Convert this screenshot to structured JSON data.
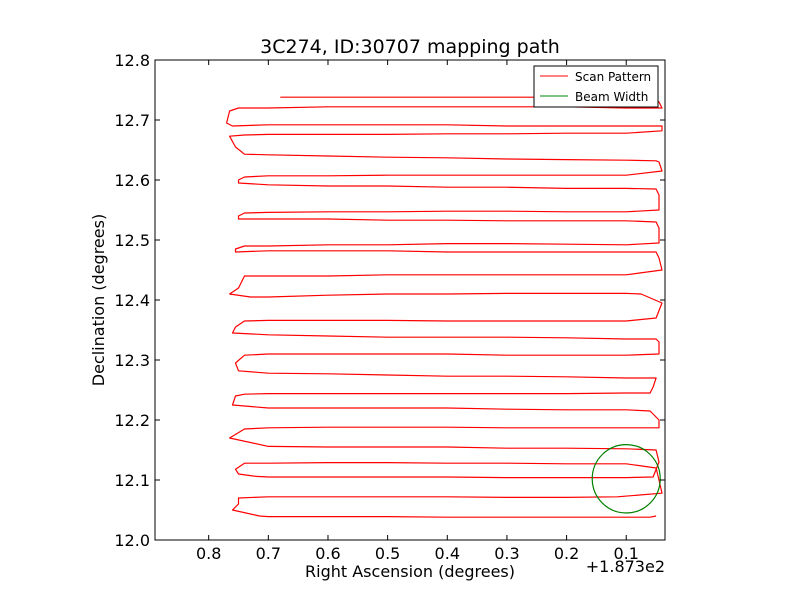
{
  "chart_data": {
    "type": "line",
    "title": "3C274, ID:30707 mapping path",
    "xlabel": "Right Ascension (degrees)",
    "ylabel": "Declination (degrees)",
    "x_offset_label": "+1.873e2",
    "xlim": [
      0.89,
      0.035
    ],
    "ylim": [
      12.0,
      12.8
    ],
    "x_ticks": [
      0.8,
      0.7,
      0.6,
      0.5,
      0.4,
      0.3,
      0.2,
      0.1
    ],
    "x_tick_labels": [
      "0.8",
      "0.7",
      "0.6",
      "0.5",
      "0.4",
      "0.3",
      "0.2",
      "0.1"
    ],
    "y_ticks": [
      12.0,
      12.1,
      12.2,
      12.3,
      12.4,
      12.5,
      12.6,
      12.7,
      12.8
    ],
    "y_tick_labels": [
      "12.0",
      "12.1",
      "12.2",
      "12.3",
      "12.4",
      "12.5",
      "12.6",
      "12.7",
      "12.8"
    ],
    "grid": false,
    "legend_position": "top-right",
    "series": [
      {
        "name": "Scan Pattern",
        "color": "#ff0000",
        "points": [
          [
            0.05,
            12.04
          ],
          [
            0.06,
            12.038
          ],
          [
            0.1,
            12.038
          ],
          [
            0.2,
            12.038
          ],
          [
            0.3,
            12.038
          ],
          [
            0.4,
            12.038
          ],
          [
            0.5,
            12.039
          ],
          [
            0.6,
            12.039
          ],
          [
            0.7,
            12.039
          ],
          [
            0.715,
            12.04
          ],
          [
            0.76,
            12.05
          ],
          [
            0.75,
            12.06
          ],
          [
            0.75,
            12.07
          ],
          [
            0.7,
            12.072
          ],
          [
            0.6,
            12.072
          ],
          [
            0.5,
            12.072
          ],
          [
            0.4,
            12.072
          ],
          [
            0.3,
            12.071
          ],
          [
            0.2,
            12.071
          ],
          [
            0.115,
            12.072
          ],
          [
            0.04,
            12.078
          ],
          [
            0.045,
            12.1
          ],
          [
            0.05,
            12.12
          ],
          [
            0.1,
            12.127
          ],
          [
            0.2,
            12.127
          ],
          [
            0.3,
            12.128
          ],
          [
            0.4,
            12.128
          ],
          [
            0.5,
            12.129
          ],
          [
            0.6,
            12.129
          ],
          [
            0.7,
            12.128
          ],
          [
            0.74,
            12.128
          ],
          [
            0.755,
            12.118
          ],
          [
            0.75,
            12.11
          ],
          [
            0.72,
            12.106
          ],
          [
            0.7,
            12.105
          ],
          [
            0.6,
            12.105
          ],
          [
            0.5,
            12.105
          ],
          [
            0.4,
            12.105
          ],
          [
            0.3,
            12.104
          ],
          [
            0.2,
            12.104
          ],
          [
            0.1,
            12.104
          ],
          [
            0.055,
            12.105
          ],
          [
            0.045,
            12.13
          ],
          [
            0.05,
            12.15
          ],
          [
            0.1,
            12.152
          ],
          [
            0.2,
            12.153
          ],
          [
            0.3,
            12.153
          ],
          [
            0.4,
            12.155
          ],
          [
            0.5,
            12.155
          ],
          [
            0.6,
            12.155
          ],
          [
            0.7,
            12.156
          ],
          [
            0.765,
            12.17
          ],
          [
            0.74,
            12.185
          ],
          [
            0.7,
            12.187
          ],
          [
            0.6,
            12.188
          ],
          [
            0.5,
            12.188
          ],
          [
            0.4,
            12.188
          ],
          [
            0.3,
            12.187
          ],
          [
            0.2,
            12.187
          ],
          [
            0.1,
            12.187
          ],
          [
            0.045,
            12.187
          ],
          [
            0.045,
            12.2
          ],
          [
            0.06,
            12.215
          ],
          [
            0.1,
            12.217
          ],
          [
            0.2,
            12.217
          ],
          [
            0.3,
            12.218
          ],
          [
            0.4,
            12.22
          ],
          [
            0.5,
            12.22
          ],
          [
            0.6,
            12.22
          ],
          [
            0.7,
            12.22
          ],
          [
            0.76,
            12.225
          ],
          [
            0.755,
            12.24
          ],
          [
            0.74,
            12.243
          ],
          [
            0.7,
            12.244
          ],
          [
            0.6,
            12.244
          ],
          [
            0.5,
            12.244
          ],
          [
            0.4,
            12.244
          ],
          [
            0.3,
            12.244
          ],
          [
            0.2,
            12.244
          ],
          [
            0.1,
            12.245
          ],
          [
            0.06,
            12.245
          ],
          [
            0.055,
            12.255
          ],
          [
            0.05,
            12.27
          ],
          [
            0.1,
            12.27
          ],
          [
            0.2,
            12.272
          ],
          [
            0.3,
            12.273
          ],
          [
            0.4,
            12.273
          ],
          [
            0.5,
            12.275
          ],
          [
            0.6,
            12.277
          ],
          [
            0.7,
            12.278
          ],
          [
            0.75,
            12.282
          ],
          [
            0.755,
            12.295
          ],
          [
            0.74,
            12.308
          ],
          [
            0.7,
            12.31
          ],
          [
            0.6,
            12.31
          ],
          [
            0.5,
            12.31
          ],
          [
            0.4,
            12.31
          ],
          [
            0.3,
            12.308
          ],
          [
            0.2,
            12.308
          ],
          [
            0.1,
            12.308
          ],
          [
            0.045,
            12.31
          ],
          [
            0.045,
            12.33
          ],
          [
            0.05,
            12.335
          ],
          [
            0.1,
            12.335
          ],
          [
            0.2,
            12.337
          ],
          [
            0.3,
            12.338
          ],
          [
            0.4,
            12.338
          ],
          [
            0.5,
            12.338
          ],
          [
            0.6,
            12.34
          ],
          [
            0.7,
            12.342
          ],
          [
            0.76,
            12.345
          ],
          [
            0.755,
            12.355
          ],
          [
            0.74,
            12.365
          ],
          [
            0.7,
            12.366
          ],
          [
            0.6,
            12.366
          ],
          [
            0.5,
            12.366
          ],
          [
            0.4,
            12.365
          ],
          [
            0.3,
            12.365
          ],
          [
            0.2,
            12.365
          ],
          [
            0.1,
            12.365
          ],
          [
            0.05,
            12.37
          ],
          [
            0.04,
            12.395
          ],
          [
            0.075,
            12.41
          ],
          [
            0.1,
            12.411
          ],
          [
            0.2,
            12.411
          ],
          [
            0.3,
            12.411
          ],
          [
            0.4,
            12.41
          ],
          [
            0.5,
            12.41
          ],
          [
            0.6,
            12.408
          ],
          [
            0.7,
            12.405
          ],
          [
            0.73,
            12.405
          ],
          [
            0.765,
            12.41
          ],
          [
            0.75,
            12.42
          ],
          [
            0.74,
            12.44
          ],
          [
            0.7,
            12.44
          ],
          [
            0.6,
            12.44
          ],
          [
            0.5,
            12.442
          ],
          [
            0.4,
            12.442
          ],
          [
            0.3,
            12.442
          ],
          [
            0.2,
            12.442
          ],
          [
            0.1,
            12.442
          ],
          [
            0.04,
            12.45
          ],
          [
            0.045,
            12.47
          ],
          [
            0.05,
            12.48
          ],
          [
            0.1,
            12.48
          ],
          [
            0.2,
            12.48
          ],
          [
            0.3,
            12.48
          ],
          [
            0.4,
            12.48
          ],
          [
            0.5,
            12.482
          ],
          [
            0.6,
            12.482
          ],
          [
            0.7,
            12.482
          ],
          [
            0.755,
            12.48
          ],
          [
            0.755,
            12.485
          ],
          [
            0.74,
            12.49
          ],
          [
            0.7,
            12.49
          ],
          [
            0.6,
            12.492
          ],
          [
            0.5,
            12.492
          ],
          [
            0.4,
            12.494
          ],
          [
            0.3,
            12.494
          ],
          [
            0.2,
            12.493
          ],
          [
            0.1,
            12.492
          ],
          [
            0.045,
            12.495
          ],
          [
            0.045,
            12.52
          ],
          [
            0.05,
            12.53
          ],
          [
            0.1,
            12.532
          ],
          [
            0.2,
            12.532
          ],
          [
            0.3,
            12.532
          ],
          [
            0.4,
            12.533
          ],
          [
            0.5,
            12.533
          ],
          [
            0.6,
            12.535
          ],
          [
            0.7,
            12.535
          ],
          [
            0.75,
            12.535
          ],
          [
            0.75,
            12.54
          ],
          [
            0.74,
            12.545
          ],
          [
            0.7,
            12.546
          ],
          [
            0.6,
            12.547
          ],
          [
            0.5,
            12.547
          ],
          [
            0.4,
            12.548
          ],
          [
            0.3,
            12.548
          ],
          [
            0.2,
            12.547
          ],
          [
            0.1,
            12.547
          ],
          [
            0.045,
            12.55
          ],
          [
            0.045,
            12.575
          ],
          [
            0.05,
            12.585
          ],
          [
            0.1,
            12.586
          ],
          [
            0.2,
            12.586
          ],
          [
            0.3,
            12.588
          ],
          [
            0.4,
            12.588
          ],
          [
            0.5,
            12.59
          ],
          [
            0.6,
            12.59
          ],
          [
            0.7,
            12.592
          ],
          [
            0.75,
            12.595
          ],
          [
            0.75,
            12.6
          ],
          [
            0.74,
            12.605
          ],
          [
            0.7,
            12.607
          ],
          [
            0.6,
            12.607
          ],
          [
            0.5,
            12.608
          ],
          [
            0.4,
            12.608
          ],
          [
            0.3,
            12.608
          ],
          [
            0.2,
            12.608
          ],
          [
            0.1,
            12.608
          ],
          [
            0.04,
            12.615
          ],
          [
            0.045,
            12.63
          ],
          [
            0.05,
            12.632
          ],
          [
            0.1,
            12.633
          ],
          [
            0.2,
            12.634
          ],
          [
            0.3,
            12.635
          ],
          [
            0.4,
            12.637
          ],
          [
            0.5,
            12.638
          ],
          [
            0.6,
            12.64
          ],
          [
            0.7,
            12.642
          ],
          [
            0.74,
            12.643
          ],
          [
            0.755,
            12.655
          ],
          [
            0.765,
            12.673
          ],
          [
            0.74,
            12.675
          ],
          [
            0.7,
            12.676
          ],
          [
            0.6,
            12.676
          ],
          [
            0.5,
            12.676
          ],
          [
            0.4,
            12.677
          ],
          [
            0.3,
            12.677
          ],
          [
            0.2,
            12.678
          ],
          [
            0.1,
            12.678
          ],
          [
            0.04,
            12.682
          ],
          [
            0.04,
            12.69
          ],
          [
            0.05,
            12.69
          ],
          [
            0.1,
            12.69
          ],
          [
            0.2,
            12.69
          ],
          [
            0.3,
            12.69
          ],
          [
            0.4,
            12.692
          ],
          [
            0.5,
            12.692
          ],
          [
            0.6,
            12.692
          ],
          [
            0.7,
            12.692
          ],
          [
            0.76,
            12.69
          ],
          [
            0.77,
            12.695
          ],
          [
            0.765,
            12.715
          ],
          [
            0.75,
            12.72
          ],
          [
            0.7,
            12.72
          ],
          [
            0.6,
            12.722
          ],
          [
            0.5,
            12.722
          ],
          [
            0.4,
            12.722
          ],
          [
            0.3,
            12.722
          ],
          [
            0.2,
            12.722
          ],
          [
            0.1,
            12.72
          ],
          [
            0.04,
            12.72
          ],
          [
            0.045,
            12.73
          ],
          [
            0.07,
            12.737
          ],
          [
            0.1,
            12.737
          ],
          [
            0.2,
            12.738
          ],
          [
            0.3,
            12.738
          ],
          [
            0.4,
            12.738
          ],
          [
            0.5,
            12.738
          ],
          [
            0.6,
            12.738
          ],
          [
            0.68,
            12.738
          ]
        ]
      },
      {
        "name": "Beam Width",
        "color": "#008000",
        "circle": {
          "center_x": 0.1,
          "center_y": 12.102,
          "radius": 0.057
        }
      }
    ]
  }
}
